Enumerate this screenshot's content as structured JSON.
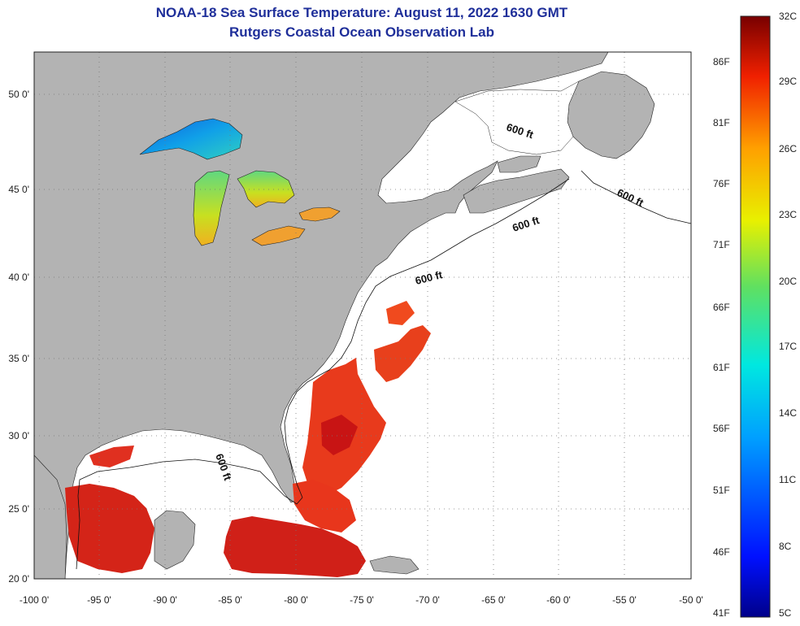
{
  "title_line1": "NOAA-18 Sea Surface Temperature:  August 11, 2022 1630 GMT",
  "title_line2": "Rutgers Coastal Ocean Observation Lab",
  "map": {
    "lon_ticks": [
      "-100 0'",
      "-95 0'",
      "-90 0'",
      "-85 0'",
      "-80 0'",
      "-75 0'",
      "-70 0'",
      "-65 0'",
      "-60 0'",
      "-55 0'",
      "-50 0'"
    ],
    "lat_ticks": [
      "50 0'",
      "45 0'",
      "40 0'",
      "35 0'",
      "30 0'",
      "25 0'",
      "20 0'"
    ],
    "contour_labels": [
      "600 ft",
      "600 ft",
      "600 ft",
      "600 ft",
      "600 ft"
    ],
    "colors": {
      "land": "#b3b3b3",
      "ocean": "#ffffff",
      "warm": "#e8321a",
      "hot": "#c81414",
      "grid": "#888888"
    }
  },
  "colorbar": {
    "celsius": [
      "32C",
      "29C",
      "26C",
      "23C",
      "20C",
      "17C",
      "14C",
      "11C",
      "8C",
      "5C"
    ],
    "fahrenheit": [
      "86F",
      "81F",
      "76F",
      "71F",
      "66F",
      "61F",
      "56F",
      "51F",
      "46F",
      "41F"
    ]
  }
}
